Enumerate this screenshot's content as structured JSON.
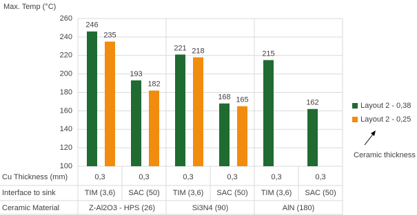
{
  "chart_data": {
    "type": "bar",
    "y_axis_title": "Max. Temp (°C)",
    "categories": [
      "TIM (3,6)",
      "SAC (50)",
      "TIM (3,6)",
      "SAC (50)",
      "TIM (3,6)",
      "SAC (50)"
    ],
    "series": [
      {
        "name": "Layout 2 - 0,38",
        "color": "#1f6b32",
        "values": [
          246,
          193,
          221,
          168,
          215,
          162
        ]
      },
      {
        "name": "Layout 2 - 0,25",
        "color": "#f18c0e",
        "values": [
          235,
          182,
          218,
          165,
          null,
          null
        ]
      }
    ],
    "ylim": [
      100,
      260
    ],
    "yticks": [
      100,
      120,
      140,
      160,
      180,
      200,
      220,
      240,
      260
    ],
    "grid": true,
    "legend": "right",
    "table": {
      "cu_thickness": {
        "label": "Cu Thickness (mm)",
        "values": [
          "0,3",
          "0,3",
          "0,3",
          "0,3",
          "0,3",
          "0,3"
        ]
      },
      "interface_label": "Interface to sink",
      "ceramic": {
        "label": "Ceramic Material",
        "names": [
          "Z-Al2O3 - HPS (26)",
          "Si3N4 (90)",
          "AlN (180)"
        ]
      }
    },
    "annotation": "Ceramic thickness"
  }
}
